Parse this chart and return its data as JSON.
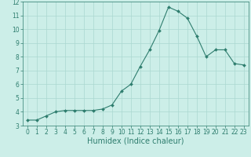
{
  "x": [
    0,
    1,
    2,
    3,
    4,
    5,
    6,
    7,
    8,
    9,
    10,
    11,
    12,
    13,
    14,
    15,
    16,
    17,
    18,
    19,
    20,
    21,
    22,
    23
  ],
  "y": [
    3.4,
    3.4,
    3.7,
    4.0,
    4.1,
    4.1,
    4.1,
    4.1,
    4.2,
    4.5,
    5.5,
    6.0,
    7.3,
    8.5,
    9.9,
    11.6,
    11.3,
    10.8,
    9.5,
    8.0,
    8.5,
    8.5,
    7.5,
    7.4
  ],
  "line_color": "#2e7d6e",
  "marker": "D",
  "marker_size": 2.0,
  "bg_color": "#cceee8",
  "grid_color": "#aad8d0",
  "xlabel": "Humidex (Indice chaleur)",
  "xlim": [
    -0.5,
    23.5
  ],
  "ylim": [
    3,
    12
  ],
  "yticks": [
    3,
    4,
    5,
    6,
    7,
    8,
    9,
    10,
    11,
    12
  ],
  "xticks": [
    0,
    1,
    2,
    3,
    4,
    5,
    6,
    7,
    8,
    9,
    10,
    11,
    12,
    13,
    14,
    15,
    16,
    17,
    18,
    19,
    20,
    21,
    22,
    23
  ],
  "tick_fontsize": 5.5,
  "xlabel_fontsize": 7,
  "label_color": "#2e7d6e"
}
